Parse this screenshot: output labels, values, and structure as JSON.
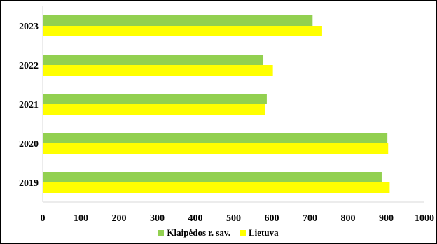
{
  "chart_data": {
    "type": "bar",
    "orientation": "horizontal",
    "categories": [
      "2019",
      "2020",
      "2021",
      "2022",
      "2023"
    ],
    "series": [
      {
        "name": "Klaipėdos r. sav.",
        "color": "#92d050",
        "values": [
          888,
          903,
          587,
          578,
          707
        ]
      },
      {
        "name": "Lietuva",
        "color": "#ffff00",
        "values": [
          909,
          905,
          582,
          603,
          732
        ]
      }
    ],
    "xlim": [
      0,
      1000
    ],
    "x_ticks": [
      "0",
      "100",
      "200",
      "300",
      "400",
      "500",
      "600",
      "700",
      "800",
      "900",
      "1000"
    ],
    "grid": false,
    "legend_position": "bottom"
  }
}
